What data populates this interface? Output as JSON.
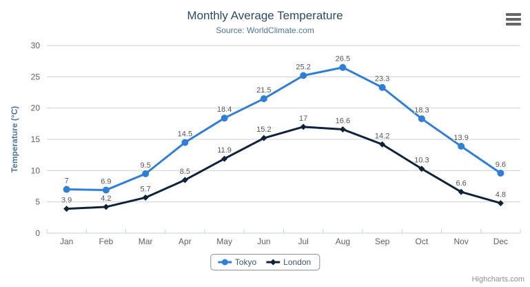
{
  "title": "Monthly Average Temperature",
  "subtitle": "Source: WorldClimate.com",
  "credits": "Highcharts.com",
  "menu": {
    "icon": "hamburger-icon"
  },
  "colors": {
    "tokyo": "#2f7ed8",
    "london": "#0d233a",
    "grid_line": "#d0d0d0",
    "axis_line": "#c0d0e0",
    "tick": "#c0d0e0",
    "axis_label": "#606060",
    "data_label": "#555555",
    "title": "#2d4a68",
    "subtitle": "#4d759e",
    "axis_title": "#4d759e",
    "legend_text": "#3e576f",
    "legend_border": "#909090",
    "credits_text": "#909090"
  },
  "chart_data": {
    "type": "line",
    "title": "Monthly Average Temperature",
    "subtitle": "Source: WorldClimate.com",
    "categories": [
      "Jan",
      "Feb",
      "Mar",
      "Apr",
      "May",
      "Jun",
      "Jul",
      "Aug",
      "Sep",
      "Oct",
      "Nov",
      "Dec"
    ],
    "series": [
      {
        "name": "Tokyo",
        "marker": "circle",
        "color": "#2f7ed8",
        "values": [
          7,
          6.9,
          9.5,
          14.5,
          18.4,
          21.5,
          25.2,
          26.5,
          23.3,
          18.3,
          13.9,
          9.6
        ]
      },
      {
        "name": "London",
        "marker": "diamond",
        "color": "#0d233a",
        "values": [
          3.9,
          4.2,
          5.7,
          8.5,
          11.9,
          15.2,
          17,
          16.6,
          14.2,
          10.3,
          6.6,
          4.8
        ]
      }
    ],
    "xlabel": "",
    "ylabel": "Temperature (°C)",
    "ylim": [
      0,
      30
    ],
    "yticks": [
      0,
      5,
      10,
      15,
      20,
      25,
      30
    ],
    "grid": true,
    "legend_position": "bottom",
    "data_labels": true
  }
}
